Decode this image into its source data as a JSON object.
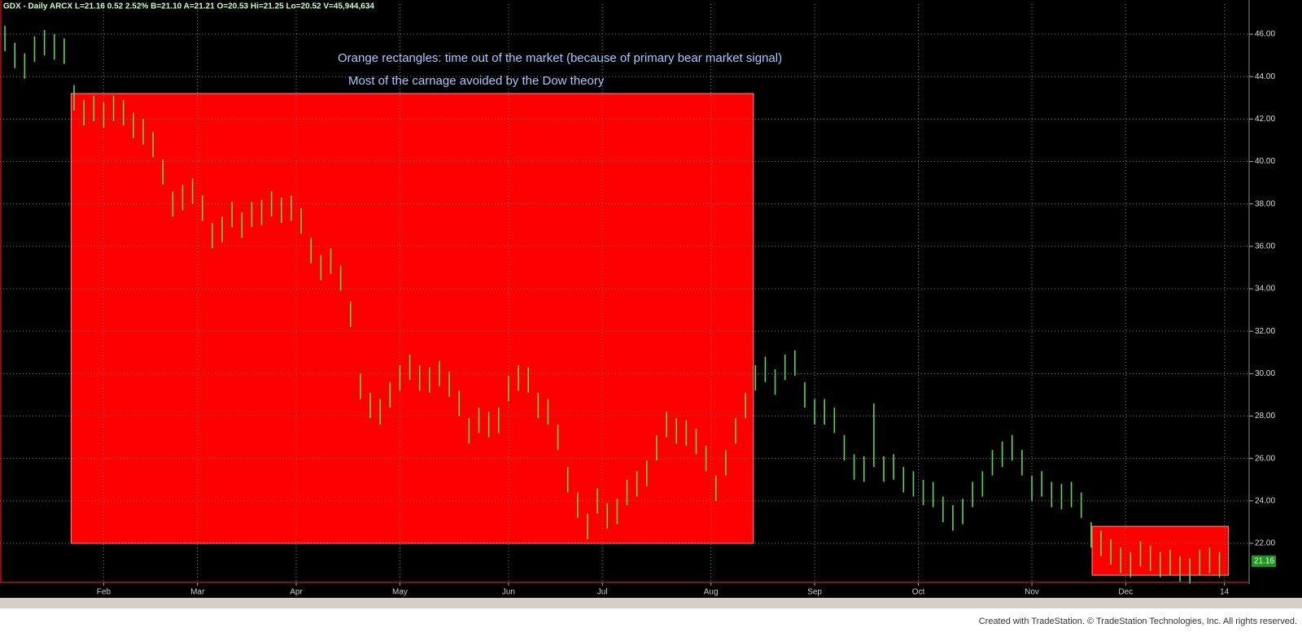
{
  "chart_data": {
    "type": "ohlc",
    "header": "GDX - Daily ARCX L=21.16 0.52 2.52% B=21.10 A=21.21 O=20.53 Hi=21.25 Lo=20.52 V=45,944,634",
    "annotations": [
      "Orange rectangles: time out of the market (because of primary bear market signal)",
      "Most of the carnage avoided by the Dow theory"
    ],
    "footer": "Created with TradeStation. © TradeStation Technologies, Inc. All rights reserved.",
    "last_price": {
      "value": 21.16,
      "label": "21.16"
    },
    "color": "#5ad65a",
    "region_color": "#ff0000",
    "grid": true,
    "shaded_regions": [
      {
        "start": 6.7,
        "end": 75.8,
        "ymin": 22,
        "ymax": 43.2
      },
      {
        "start": 110.1,
        "end": 123.9,
        "ymin": 20.5,
        "ymax": 22.8
      }
    ],
    "xlim": [
      -0.5,
      126
    ],
    "xticks": [
      {
        "value": 10,
        "label": "Feb"
      },
      {
        "value": 19.5,
        "label": "Mar"
      },
      {
        "value": 29.5,
        "label": "Apr"
      },
      {
        "value": 40,
        "label": "May"
      },
      {
        "value": 51,
        "label": "Jun"
      },
      {
        "value": 60.5,
        "label": "Jul"
      },
      {
        "value": 71.5,
        "label": "Aug"
      },
      {
        "value": 82,
        "label": "Sep"
      },
      {
        "value": 92.5,
        "label": "Oct"
      },
      {
        "value": 104,
        "label": "Nov"
      },
      {
        "value": 113.5,
        "label": "Dec"
      },
      {
        "value": 123.5,
        "label": "14"
      }
    ],
    "ylim": [
      20.16,
      47.42
    ],
    "yticks": [
      {
        "value": 22,
        "label": "22.00"
      },
      {
        "value": 24,
        "label": "24.00"
      },
      {
        "value": 26,
        "label": "26.00"
      },
      {
        "value": 28,
        "label": "28.00"
      },
      {
        "value": 30,
        "label": "30.00"
      },
      {
        "value": 32,
        "label": "32.00"
      },
      {
        "value": 34,
        "label": "34.00"
      },
      {
        "value": 36,
        "label": "36.00"
      },
      {
        "value": 38,
        "label": "38.00"
      },
      {
        "value": 40,
        "label": "40.00"
      },
      {
        "value": 42,
        "label": "42.00"
      },
      {
        "value": 44,
        "label": "44.00"
      },
      {
        "value": 46,
        "label": "46.00"
      }
    ],
    "highs": [
      46.4,
      45.6,
      45.1,
      45.9,
      46.2,
      46.0,
      45.8,
      43.6,
      42.9,
      43.1,
      42.8,
      43.1,
      42.9,
      42.3,
      42.0,
      41.4,
      40.1,
      38.6,
      38.9,
      39.2,
      38.4,
      37.1,
      37.4,
      38.1,
      37.6,
      38.1,
      38.2,
      38.6,
      38.3,
      38.4,
      37.8,
      36.4,
      35.6,
      35.9,
      35.1,
      33.4,
      30.0,
      29.1,
      28.8,
      29.6,
      30.4,
      30.9,
      30.4,
      30.3,
      30.6,
      30.1,
      29.2,
      27.9,
      28.4,
      28.2,
      28.4,
      29.9,
      30.4,
      30.3,
      29.1,
      28.8,
      27.6,
      25.6,
      24.4,
      23.4,
      24.6,
      23.9,
      24.1,
      25.0,
      25.4,
      25.9,
      27.1,
      28.2,
      27.9,
      27.8,
      27.4,
      26.6,
      25.2,
      26.4,
      27.9,
      29.1,
      30.4,
      30.8,
      30.2,
      30.9,
      31.1,
      29.6,
      28.8,
      28.8,
      28.4,
      27.1,
      26.2,
      26.1,
      28.6,
      26.1,
      26.2,
      25.6,
      25.4,
      25.0,
      24.9,
      24.2,
      23.8,
      24.1,
      24.9,
      25.4,
      26.4,
      26.8,
      27.1,
      26.4,
      25.2,
      25.4,
      24.9,
      24.8,
      24.9,
      24.4,
      23.0,
      22.6,
      22.2,
      21.8,
      21.6,
      22.1,
      21.9,
      21.6,
      21.7,
      21.4,
      21.3,
      21.7,
      21.8,
      21.6
    ],
    "lows": [
      45.2,
      44.4,
      43.9,
      44.7,
      45.0,
      44.8,
      44.6,
      42.4,
      41.7,
      41.9,
      41.6,
      41.9,
      41.7,
      41.1,
      40.8,
      40.2,
      38.9,
      37.4,
      37.7,
      38.0,
      37.2,
      35.9,
      36.2,
      36.9,
      36.4,
      36.9,
      37.0,
      37.4,
      37.1,
      37.2,
      36.6,
      35.2,
      34.4,
      34.7,
      33.9,
      32.2,
      28.8,
      27.9,
      27.6,
      28.4,
      29.2,
      29.7,
      29.2,
      29.1,
      29.4,
      28.9,
      28.0,
      26.7,
      27.2,
      27.0,
      27.2,
      28.7,
      29.2,
      29.1,
      27.9,
      27.6,
      26.4,
      24.4,
      23.2,
      22.2,
      23.4,
      22.7,
      22.9,
      23.8,
      24.2,
      24.7,
      25.9,
      27.0,
      26.7,
      26.6,
      26.2,
      25.4,
      24.0,
      25.2,
      26.7,
      27.9,
      29.2,
      29.6,
      29.0,
      29.7,
      29.9,
      28.4,
      27.6,
      27.6,
      27.2,
      25.9,
      25.0,
      24.9,
      25.6,
      24.9,
      25.0,
      24.4,
      24.2,
      23.8,
      23.7,
      23.0,
      22.6,
      22.9,
      23.7,
      24.2,
      25.2,
      25.6,
      25.9,
      25.2,
      24.0,
      24.2,
      23.7,
      23.6,
      23.7,
      23.2,
      21.8,
      21.4,
      21.0,
      20.6,
      20.4,
      20.9,
      20.7,
      20.4,
      20.5,
      20.2,
      20.1,
      20.5,
      20.6,
      20.4
    ]
  }
}
